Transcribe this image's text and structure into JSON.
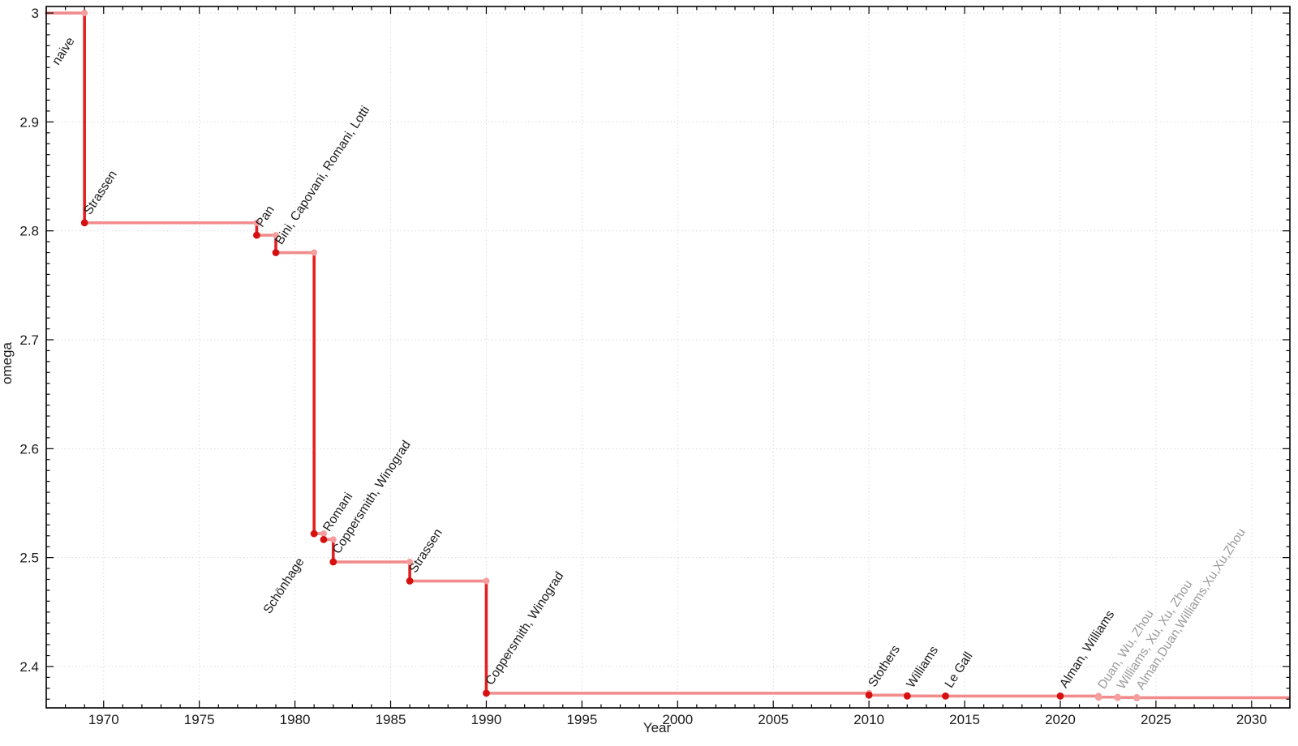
{
  "chart_data": {
    "type": "line",
    "subtype": "step-drop",
    "title": "",
    "xlabel": "Year",
    "ylabel": "omega",
    "xlim": [
      1967.0,
      2032.0
    ],
    "ylim": [
      2.362,
      3.006
    ],
    "x_major_ticks": [
      1970,
      1975,
      1980,
      1985,
      1990,
      1995,
      2000,
      2005,
      2010,
      2015,
      2020,
      2025,
      2030
    ],
    "x_major_tick_labels": [
      "1970",
      "1975",
      "1980",
      "1985",
      "1990",
      "1995",
      "2000",
      "2005",
      "2010",
      "2015",
      "2020",
      "2025",
      "2030"
    ],
    "x_minor_step": 1,
    "y_major_ticks": [
      2.4,
      2.5,
      2.6,
      2.7,
      2.8,
      2.9,
      3.0
    ],
    "y_major_tick_labels": [
      "2.4",
      "2.5",
      "2.6",
      "2.7",
      "2.8",
      "2.9",
      "3"
    ],
    "y_minor_step": 0.01,
    "grid": "dotted-major",
    "legend": "none",
    "start": {
      "label": "naive",
      "omega": 3,
      "label_anchor": "end"
    },
    "points": [
      {
        "label": "Strassen",
        "year": 1969,
        "omega": 2.8074,
        "emphasis": "dark",
        "muted": false,
        "label_anchor": "start"
      },
      {
        "label": "Pan",
        "year": 1978,
        "omega": 2.796,
        "emphasis": "dark",
        "muted": false,
        "label_anchor": "start"
      },
      {
        "label": "Bini, Capovani, Romani, Lotti",
        "year": 1979,
        "omega": 2.78,
        "emphasis": "dark",
        "muted": false,
        "label_anchor": "start"
      },
      {
        "label": "Schönhage",
        "year": 1981,
        "omega": 2.522,
        "emphasis": "dark",
        "muted": false,
        "label_anchor": "end"
      },
      {
        "label": "Romani",
        "year": 1981.5,
        "omega": 2.5166,
        "emphasis": "dark",
        "muted": false,
        "label_anchor": "start"
      },
      {
        "label": "Coppersmith, Winograd",
        "year": 1982,
        "omega": 2.496,
        "emphasis": "dark",
        "muted": false,
        "label_anchor": "start"
      },
      {
        "label": "Strassen",
        "year": 1986,
        "omega": 2.4785,
        "emphasis": "dark",
        "muted": false,
        "label_anchor": "start"
      },
      {
        "label": "Coppersmith, Winograd",
        "year": 1990,
        "omega": 2.3755,
        "emphasis": "dark",
        "muted": false,
        "label_anchor": "start"
      },
      {
        "label": "Stothers",
        "year": 2010,
        "omega": 2.3737,
        "emphasis": "dark",
        "muted": false,
        "label_anchor": "start"
      },
      {
        "label": "Williams",
        "year": 2012,
        "omega": 2.3729,
        "emphasis": "dark",
        "muted": false,
        "label_anchor": "start"
      },
      {
        "label": "Le Gall",
        "year": 2014,
        "omega": 2.3728639,
        "emphasis": "dark",
        "muted": false,
        "label_anchor": "start"
      },
      {
        "label": "Alman, Williams",
        "year": 2020,
        "omega": 2.3728596,
        "emphasis": "dark",
        "muted": false,
        "label_anchor": "start"
      },
      {
        "label": "Duan, Wu, Zhou",
        "year": 2022,
        "omega": 2.371866,
        "emphasis": "light",
        "muted": true,
        "label_anchor": "start"
      },
      {
        "label": "Williams, Xu, Xu, Zhou",
        "year": 2023,
        "omega": 2.371552,
        "emphasis": "light",
        "muted": true,
        "label_anchor": "start"
      },
      {
        "label": "Alman,Duan,Williams,Xu,Xu,Zhou",
        "year": 2024,
        "omega": 2.371339,
        "emphasis": "light",
        "muted": true,
        "label_anchor": "start"
      }
    ],
    "colors": {
      "step_horizontal": "#f28b8b",
      "step_vertical": "#e41f1f",
      "marker_dark": "#d60f0f",
      "marker_light": "#f59e9e",
      "label": "#1a1a1a",
      "label_muted": "#9a9a9a",
      "grid": "#dcdcdc",
      "axis": "#000000",
      "tick_label": "#1a1a1a"
    }
  }
}
